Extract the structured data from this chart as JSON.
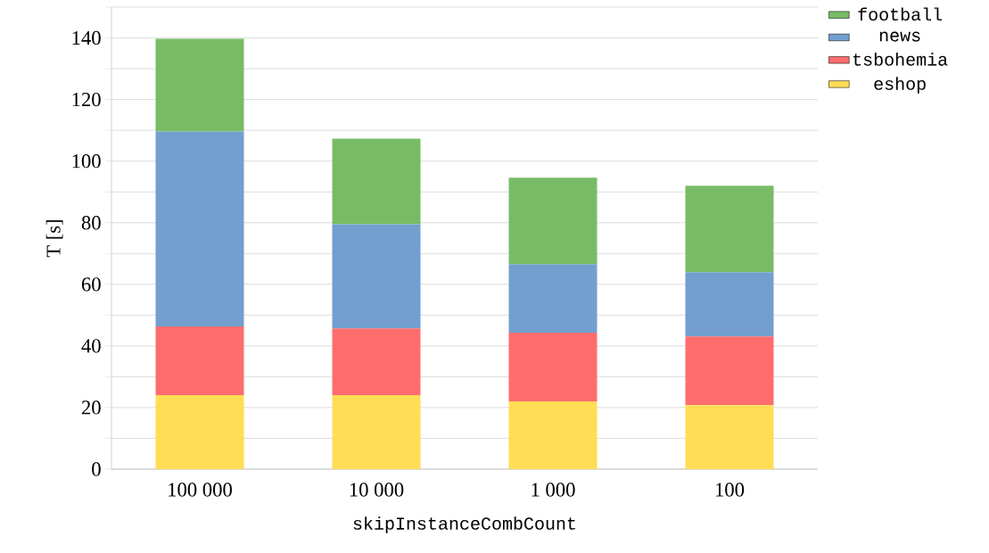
{
  "chart_data": {
    "type": "bar",
    "stacked": true,
    "xlabel": "skipInstanceCombCount",
    "ylabel": "T [s]",
    "categories": [
      "100 000",
      "10 000",
      "1 000",
      "100"
    ],
    "series": [
      {
        "name": "eshop",
        "color": "#ffdd55",
        "values": [
          24,
          24,
          22,
          20.8
        ]
      },
      {
        "name": "tsbohemia",
        "color": "#ff6d6d",
        "values": [
          22.3,
          21.7,
          22.3,
          22.3
        ]
      },
      {
        "name": "news",
        "color": "#729fcf",
        "values": [
          63.3,
          33.8,
          22.2,
          20.8
        ]
      },
      {
        "name": "football",
        "color": "#77bc65",
        "values": [
          30.1,
          27.8,
          28.1,
          28.1
        ]
      }
    ],
    "ylim": [
      0,
      150
    ],
    "yticks": [
      0,
      {
        "value": 10,
        "label": null
      },
      20,
      {
        "value": 30,
        "label": null
      },
      40,
      {
        "value": 50,
        "label": null
      },
      60,
      {
        "value": 70,
        "label": null
      },
      80,
      {
        "value": 90,
        "label": null
      },
      100,
      {
        "value": 110,
        "label": null
      },
      120,
      {
        "value": 130,
        "label": null
      },
      140,
      {
        "value": 150,
        "label": null
      }
    ],
    "grid": "y",
    "legend": "top right"
  }
}
